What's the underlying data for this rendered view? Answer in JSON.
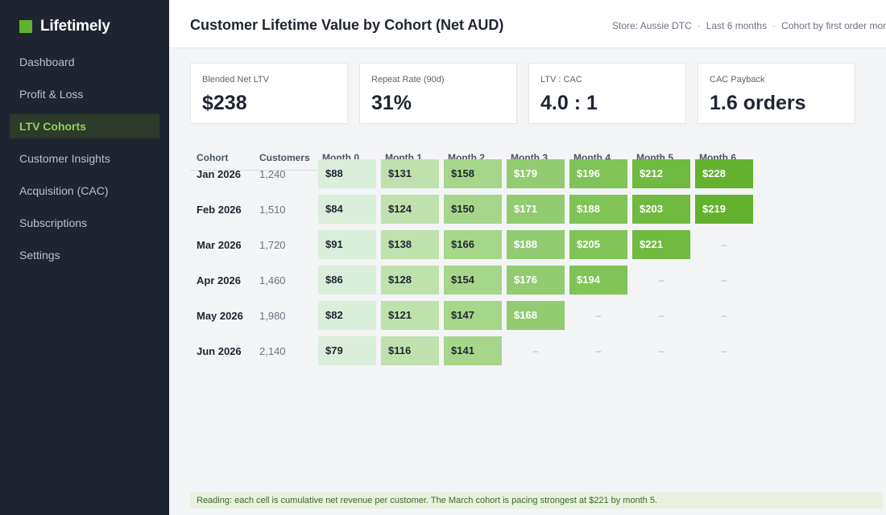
{
  "app": {
    "name": "Lifetimely",
    "brand_color": "#5fb12e"
  },
  "sidebar": {
    "items": [
      {
        "label": "Dashboard",
        "active": false
      },
      {
        "label": "Profit & Loss",
        "active": false
      },
      {
        "label": "LTV Cohorts",
        "active": true
      },
      {
        "label": "Customer Insights",
        "active": false
      },
      {
        "label": "Acquisition (CAC)",
        "active": false
      },
      {
        "label": "Subscriptions",
        "active": false
      },
      {
        "label": "Settings",
        "active": false
      }
    ]
  },
  "header": {
    "title": "Customer Lifetime Value by Cohort (Net AUD)",
    "meta": [
      "Store: Aussie DTC",
      "Last 6 months",
      "Cohort by first order month"
    ]
  },
  "kpis": [
    {
      "label": "Blended Net LTV",
      "value": "$238"
    },
    {
      "label": "Repeat Rate (90d)",
      "value": "31%"
    },
    {
      "label": "LTV : CAC",
      "value": "4.0 : 1"
    },
    {
      "label": "CAC Payback",
      "value": "1.6 orders"
    }
  ],
  "cohort_table": {
    "headers": [
      "Cohort",
      "Customers",
      "Month 0",
      "Month 1",
      "Month 2",
      "Month 3",
      "Month 4",
      "Month 5",
      "Month 6"
    ],
    "empty_symbol": "–",
    "shade_colors": [
      "#d9eedb",
      "#bfe1ad",
      "#a6d68a",
      "#92cc71",
      "#80c356",
      "#70ba40",
      "#64b12f"
    ],
    "rows": [
      {
        "cohort": "Jan 2026",
        "customers": "1,240",
        "values": [
          "$88",
          "$131",
          "$158",
          "$179",
          "$196",
          "$212",
          "$228"
        ]
      },
      {
        "cohort": "Feb 2026",
        "customers": "1,510",
        "values": [
          "$84",
          "$124",
          "$150",
          "$171",
          "$188",
          "$203",
          "$219"
        ]
      },
      {
        "cohort": "Mar 2026",
        "customers": "1,720",
        "values": [
          "$91",
          "$138",
          "$166",
          "$188",
          "$205",
          "$221",
          null
        ]
      },
      {
        "cohort": "Apr 2026",
        "customers": "1,460",
        "values": [
          "$86",
          "$128",
          "$154",
          "$176",
          "$194",
          null,
          null
        ]
      },
      {
        "cohort": "May 2026",
        "customers": "1,980",
        "values": [
          "$82",
          "$121",
          "$147",
          "$168",
          null,
          null,
          null
        ]
      },
      {
        "cohort": "Jun 2026",
        "customers": "2,140",
        "values": [
          "$79",
          "$116",
          "$141",
          null,
          null,
          null,
          null
        ]
      }
    ]
  },
  "footer_note": "Reading: each cell is cumulative net revenue per customer. The March cohort is pacing strongest at $221 by month 5."
}
